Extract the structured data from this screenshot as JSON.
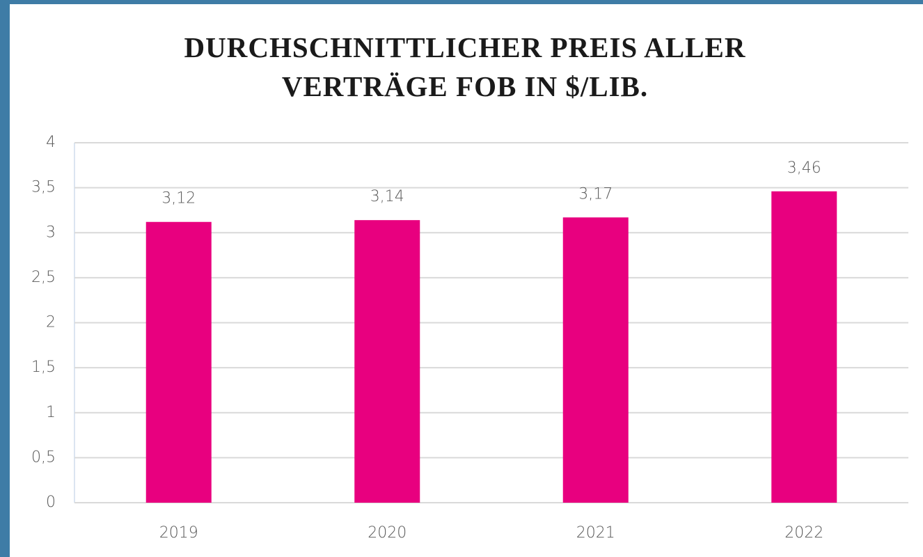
{
  "chart_data": {
    "type": "bar",
    "title": "DURCHSCHNITTLICHER PREIS ALLER VERTRÄGE FOB IN $/LIB.",
    "categories": [
      "2019",
      "2020",
      "2021",
      "2022"
    ],
    "values": [
      3.12,
      3.14,
      3.17,
      3.46
    ],
    "value_labels": [
      "3,12",
      "3,14",
      "3,17",
      "3,46"
    ],
    "color": "#e8007f",
    "ylim": [
      0,
      4
    ],
    "yticks": [
      0,
      {
        "value": 0.5,
        "label": "0,5"
      },
      1,
      {
        "value": 1.5,
        "label": "1,5"
      },
      2,
      {
        "value": 2.5,
        "label": "2,5"
      },
      3,
      {
        "value": 3.5,
        "label": "3,5"
      },
      4
    ],
    "grid": true
  }
}
